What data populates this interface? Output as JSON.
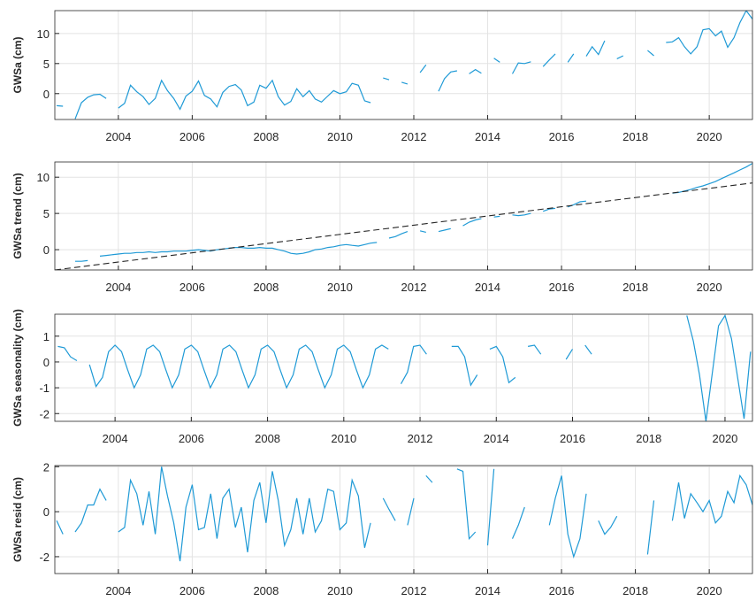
{
  "chart_data": [
    {
      "type": "line",
      "y_label": "GWSa (cm)",
      "grid": true,
      "xlim": [
        2002.28,
        2021.17
      ],
      "xticks": [
        2004,
        2006,
        2008,
        2010,
        2012,
        2014,
        2016,
        2018,
        2020
      ],
      "ylim": [
        -4.3,
        13.8
      ],
      "yticks": [
        0,
        5,
        10
      ],
      "x": [
        2002.33,
        2002.5,
        2002.67,
        2002.83,
        2003,
        2003.17,
        2003.33,
        2003.5,
        2003.67,
        2003.83,
        2004,
        2004.17,
        2004.33,
        2004.5,
        2004.67,
        2004.83,
        2005,
        2005.17,
        2005.33,
        2005.5,
        2005.67,
        2005.83,
        2006,
        2006.17,
        2006.33,
        2006.5,
        2006.67,
        2006.83,
        2007,
        2007.17,
        2007.33,
        2007.5,
        2007.67,
        2007.83,
        2008,
        2008.17,
        2008.33,
        2008.5,
        2008.67,
        2008.83,
        2009,
        2009.17,
        2009.33,
        2009.5,
        2009.67,
        2009.83,
        2010,
        2010.17,
        2010.33,
        2010.5,
        2010.67,
        2010.83,
        2011,
        2011.17,
        2011.33,
        2011.5,
        2011.67,
        2011.83,
        2012,
        2012.17,
        2012.33,
        2012.5,
        2012.67,
        2012.83,
        2013,
        2013.17,
        2013.33,
        2013.5,
        2013.67,
        2013.83,
        2014,
        2014.17,
        2014.33,
        2014.5,
        2014.67,
        2014.83,
        2015,
        2015.17,
        2015.33,
        2015.5,
        2015.67,
        2015.83,
        2016,
        2016.17,
        2016.33,
        2016.5,
        2016.67,
        2016.83,
        2017,
        2017.17,
        2017.33,
        2017.5,
        2017.67,
        2017.83,
        2018,
        2018.17,
        2018.33,
        2018.5,
        2018.67,
        2018.83,
        2019,
        2019.17,
        2019.33,
        2019.5,
        2019.67,
        2019.83,
        2020,
        2020.17,
        2020.33,
        2020.5,
        2020.67,
        2020.83,
        2021,
        2021.17
      ],
      "series": [
        {
          "color": "#1f9ad6",
          "values": [
            -2,
            -2.1,
            null,
            -4.2,
            -1.5,
            -0.6,
            -0.2,
            -0.1,
            -0.8,
            null,
            -2.4,
            -1.6,
            1.4,
            0.3,
            -0.5,
            -1.8,
            -0.8,
            2.2,
            0.5,
            -0.8,
            -2.6,
            -0.4,
            0.4,
            2.1,
            -0.3,
            -0.9,
            -2.2,
            0.2,
            1.2,
            1.5,
            0.6,
            -2.0,
            -1.4,
            1.4,
            0.9,
            2.2,
            -0.5,
            -1.9,
            -1.3,
            0.8,
            -0.5,
            0.5,
            -0.9,
            -1.4,
            -0.4,
            0.5,
            0,
            0.3,
            1.7,
            1.4,
            -1.2,
            -1.5,
            null,
            2.6,
            2.3,
            null,
            1.9,
            1.6,
            null,
            3.5,
            4.8,
            null,
            0.4,
            2.5,
            3.6,
            3.8,
            null,
            3.3,
            4.0,
            3.4,
            null,
            5.9,
            5.2,
            null,
            3.3,
            5.1,
            5.0,
            5.3,
            null,
            4.5,
            5.6,
            6.6,
            null,
            5.2,
            6.6,
            null,
            6.2,
            7.8,
            6.5,
            8.8,
            null,
            5.8,
            6.3,
            null,
            null,
            null,
            7.2,
            6.3,
            null,
            8.5,
            8.6,
            9.3,
            7.8,
            6.6,
            7.8,
            10.6,
            10.8,
            9.6,
            10.4,
            7.7,
            9.3,
            11.8,
            13.8,
            12.4
          ]
        }
      ]
    },
    {
      "type": "line",
      "y_label": "GWSa trend (cm)",
      "grid": true,
      "xlim": [
        2002.28,
        2021.17
      ],
      "xticks": [
        2004,
        2006,
        2008,
        2010,
        2012,
        2014,
        2016,
        2018,
        2020
      ],
      "ylim": [
        -2.8,
        12.1
      ],
      "yticks": [
        0,
        5,
        10
      ],
      "x": [
        2002.33,
        2002.5,
        2002.67,
        2002.83,
        2003,
        2003.17,
        2003.33,
        2003.5,
        2003.67,
        2003.83,
        2004,
        2004.17,
        2004.33,
        2004.5,
        2004.67,
        2004.83,
        2005,
        2005.17,
        2005.33,
        2005.5,
        2005.67,
        2005.83,
        2006,
        2006.17,
        2006.33,
        2006.5,
        2006.67,
        2006.83,
        2007,
        2007.17,
        2007.33,
        2007.5,
        2007.67,
        2007.83,
        2008,
        2008.17,
        2008.33,
        2008.5,
        2008.67,
        2008.83,
        2009,
        2009.17,
        2009.33,
        2009.5,
        2009.67,
        2009.83,
        2010,
        2010.17,
        2010.33,
        2010.5,
        2010.67,
        2010.83,
        2011,
        2011.17,
        2011.33,
        2011.5,
        2011.67,
        2011.83,
        2012,
        2012.17,
        2012.33,
        2012.5,
        2012.67,
        2012.83,
        2013,
        2013.17,
        2013.33,
        2013.5,
        2013.67,
        2013.83,
        2014,
        2014.17,
        2014.33,
        2014.5,
        2014.67,
        2014.83,
        2015,
        2015.17,
        2015.33,
        2015.5,
        2015.67,
        2015.83,
        2016,
        2016.17,
        2016.33,
        2016.5,
        2016.67,
        2016.83,
        2017,
        2017.17,
        2017.33,
        2017.5,
        2017.67,
        2017.83,
        2018,
        2018.17,
        2018.33,
        2018.5,
        2018.67,
        2018.83,
        2019,
        2019.17,
        2019.33,
        2019.5,
        2019.67,
        2019.83,
        2020,
        2020.17,
        2020.33,
        2020.5,
        2020.67,
        2020.83,
        2021,
        2021.17
      ],
      "series": [
        {
          "color": "#1f9ad6",
          "values": [
            null,
            null,
            null,
            -1.6,
            -1.6,
            -1.5,
            null,
            -0.9,
            -0.8,
            -0.7,
            -0.6,
            -0.5,
            -0.5,
            -0.4,
            -0.4,
            -0.3,
            -0.4,
            -0.3,
            -0.3,
            -0.2,
            -0.2,
            -0.2,
            -0.1,
            0,
            -0.1,
            -0.2,
            0,
            0.1,
            0.2,
            0.3,
            0.3,
            0.2,
            0.2,
            0.3,
            0.2,
            0.2,
            0,
            -0.2,
            -0.5,
            -0.6,
            -0.5,
            -0.3,
            0,
            0.1,
            0.3,
            0.4,
            0.6,
            0.7,
            0.6,
            0.5,
            0.7,
            0.9,
            1.0,
            null,
            1.6,
            1.8,
            2.2,
            2.5,
            null,
            2.6,
            2.4,
            null,
            2.5,
            2.7,
            2.9,
            null,
            3.3,
            3.8,
            4.1,
            4.3,
            null,
            4.5,
            4.6,
            null,
            4.8,
            4.7,
            4.8,
            5.0,
            null,
            5.3,
            5.6,
            5.7,
            null,
            5.9,
            6.2,
            6.6,
            6.7,
            null,
            null,
            null,
            null,
            null,
            null,
            null,
            null,
            null,
            null,
            null,
            null,
            null,
            7.8,
            7.9,
            8.1,
            8.3,
            8.6,
            8.8,
            9.1,
            9.4,
            9.8,
            10.2,
            10.6,
            11.0,
            11.4,
            11.9
          ]
        }
      ],
      "trend": {
        "x": [
          2002.28,
          2021.17
        ],
        "values": [
          -2.8,
          9.2
        ],
        "color": "#262626",
        "style": "dashed"
      }
    },
    {
      "type": "line",
      "y_label": "GWSa seasonality (cm)",
      "grid": true,
      "xlim": [
        2002.42,
        2020.72
      ],
      "xticks": [
        2004,
        2006,
        2008,
        2010,
        2012,
        2014,
        2016,
        2018,
        2020
      ],
      "ylim": [
        -2.3,
        1.85
      ],
      "yticks": [
        -2,
        -1,
        0,
        1
      ],
      "x": [
        2002.33,
        2002.5,
        2002.67,
        2002.83,
        2003,
        2003.17,
        2003.33,
        2003.5,
        2003.67,
        2003.83,
        2004,
        2004.17,
        2004.33,
        2004.5,
        2004.67,
        2004.83,
        2005,
        2005.17,
        2005.33,
        2005.5,
        2005.67,
        2005.83,
        2006,
        2006.17,
        2006.33,
        2006.5,
        2006.67,
        2006.83,
        2007,
        2007.17,
        2007.33,
        2007.5,
        2007.67,
        2007.83,
        2008,
        2008.17,
        2008.33,
        2008.5,
        2008.67,
        2008.83,
        2009,
        2009.17,
        2009.33,
        2009.5,
        2009.67,
        2009.83,
        2010,
        2010.17,
        2010.33,
        2010.5,
        2010.67,
        2010.83,
        2011,
        2011.17,
        2011.33,
        2011.5,
        2011.67,
        2011.83,
        2012,
        2012.17,
        2012.33,
        2012.5,
        2012.67,
        2012.83,
        2013,
        2013.17,
        2013.33,
        2013.5,
        2013.67,
        2013.83,
        2014,
        2014.17,
        2014.33,
        2014.5,
        2014.67,
        2014.83,
        2015,
        2015.17,
        2015.33,
        2015.5,
        2015.67,
        2015.83,
        2016,
        2016.17,
        2016.33,
        2016.5,
        2016.67,
        2016.83,
        2017,
        2017.17,
        2017.33,
        2017.5,
        2017.67,
        2017.83,
        2018,
        2018.17,
        2018.33,
        2018.5,
        2018.67,
        2018.83,
        2019,
        2019.17,
        2019.33,
        2019.5,
        2019.67,
        2019.83,
        2020,
        2020.17,
        2020.33,
        2020.5,
        2020.67,
        2020.83,
        2021,
        2021.17
      ],
      "series": [
        {
          "color": "#1f9ad6",
          "values": [
            null,
            0.6,
            0.55,
            0.2,
            0.05,
            null,
            -0.1,
            -0.95,
            -0.6,
            0.4,
            0.65,
            0.4,
            -0.3,
            -1.0,
            -0.5,
            0.5,
            0.65,
            0.4,
            -0.3,
            -1.0,
            -0.5,
            0.5,
            0.65,
            0.4,
            -0.3,
            -1.0,
            -0.5,
            0.5,
            0.65,
            0.4,
            -0.3,
            -1.0,
            -0.5,
            0.5,
            0.65,
            0.4,
            -0.3,
            -1.0,
            -0.5,
            0.5,
            0.65,
            0.4,
            -0.3,
            -1.0,
            -0.5,
            0.5,
            0.65,
            0.4,
            -0.3,
            -1.0,
            -0.5,
            0.5,
            0.65,
            0.5,
            null,
            -0.85,
            -0.4,
            0.6,
            0.65,
            0.3,
            null,
            -0.7,
            null,
            0.6,
            0.6,
            0.2,
            -0.9,
            -0.5,
            null,
            0.5,
            0.6,
            0.2,
            -0.8,
            -0.6,
            null,
            0.6,
            0.65,
            0.3,
            null,
            -0.9,
            null,
            0.1,
            0.5,
            null,
            0.65,
            0.3,
            null,
            null,
            null,
            null,
            null,
            null,
            null,
            null,
            null,
            null,
            null,
            null,
            null,
            null,
            1.8,
            0.8,
            -0.5,
            -2.3,
            -0.4,
            1.4,
            1.8,
            0.9,
            -0.6,
            -2.2,
            0.4,
            null,
            null,
            null
          ]
        }
      ]
    },
    {
      "type": "line",
      "y_label": "GWSa resid (cm)",
      "grid": true,
      "xlim": [
        2002.28,
        2021.17
      ],
      "xticks": [
        2004,
        2006,
        2008,
        2010,
        2012,
        2014,
        2016,
        2018,
        2020
      ],
      "ylim": [
        -2.75,
        2.05
      ],
      "yticks": [
        -2,
        0,
        2
      ],
      "x": [
        2002.33,
        2002.5,
        2002.67,
        2002.83,
        2003,
        2003.17,
        2003.33,
        2003.5,
        2003.67,
        2003.83,
        2004,
        2004.17,
        2004.33,
        2004.5,
        2004.67,
        2004.83,
        2005,
        2005.17,
        2005.33,
        2005.5,
        2005.67,
        2005.83,
        2006,
        2006.17,
        2006.33,
        2006.5,
        2006.67,
        2006.83,
        2007,
        2007.17,
        2007.33,
        2007.5,
        2007.67,
        2007.83,
        2008,
        2008.17,
        2008.33,
        2008.5,
        2008.67,
        2008.83,
        2009,
        2009.17,
        2009.33,
        2009.5,
        2009.67,
        2009.83,
        2010,
        2010.17,
        2010.33,
        2010.5,
        2010.67,
        2010.83,
        2011,
        2011.17,
        2011.33,
        2011.5,
        2011.67,
        2011.83,
        2012,
        2012.17,
        2012.33,
        2012.5,
        2012.67,
        2012.83,
        2013,
        2013.17,
        2013.33,
        2013.5,
        2013.67,
        2013.83,
        2014,
        2014.17,
        2014.33,
        2014.5,
        2014.67,
        2014.83,
        2015,
        2015.17,
        2015.33,
        2015.5,
        2015.67,
        2015.83,
        2016,
        2016.17,
        2016.33,
        2016.5,
        2016.67,
        2016.83,
        2017,
        2017.17,
        2017.33,
        2017.5,
        2017.67,
        2017.83,
        2018,
        2018.17,
        2018.33,
        2018.5,
        2018.67,
        2018.83,
        2019,
        2019.17,
        2019.33,
        2019.5,
        2019.67,
        2019.83,
        2020,
        2020.17,
        2020.33,
        2020.5,
        2020.67,
        2020.83,
        2021,
        2021.17
      ],
      "series": [
        {
          "color": "#1f9ad6",
          "values": [
            -0.4,
            -1.0,
            null,
            -0.9,
            -0.5,
            0.3,
            0.3,
            1.0,
            0.5,
            null,
            -0.9,
            -0.7,
            1.4,
            0.8,
            -0.6,
            0.9,
            -1.0,
            2.0,
            0.7,
            -0.5,
            -2.2,
            0.2,
            1.2,
            -0.8,
            -0.7,
            0.8,
            -1.2,
            0.6,
            1.0,
            -0.7,
            0.2,
            -1.8,
            0.5,
            1.3,
            -0.5,
            1.8,
            0.5,
            -1.5,
            -0.8,
            0.6,
            -1.0,
            0.6,
            -0.9,
            -0.4,
            1.0,
            0.9,
            -0.8,
            -0.5,
            1.4,
            0.7,
            -1.6,
            -0.5,
            null,
            0.6,
            0.1,
            -0.4,
            null,
            -0.6,
            0.6,
            null,
            1.6,
            1.3,
            null,
            -2.7,
            null,
            1.9,
            1.8,
            -1.2,
            -0.9,
            null,
            -1.5,
            1.9,
            null,
            null,
            -1.2,
            -0.6,
            0.2,
            null,
            -0.6,
            null,
            -0.6,
            0.6,
            1.6,
            -1.0,
            -2.0,
            -1.2,
            0.8,
            null,
            -0.4,
            -1.0,
            -0.7,
            -0.2,
            null,
            null,
            null,
            null,
            -1.9,
            0.5,
            null,
            null,
            -0.4,
            1.3,
            -0.3,
            0.8,
            0.4,
            0.0,
            0.5,
            -0.5,
            -0.2,
            0.9,
            0.4,
            1.6,
            1.2,
            0.3
          ]
        }
      ]
    }
  ]
}
